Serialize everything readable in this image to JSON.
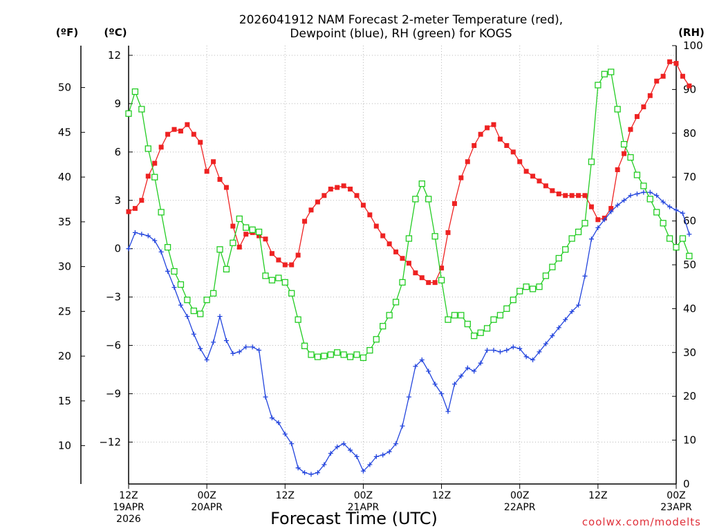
{
  "chart_data": {
    "type": "line",
    "title": [
      "2026041912 NAM Forecast 2-meter Temperature (red),",
      "Dewpoint (blue), RH (green) for KOGS"
    ],
    "xlabel": "Forecast Time (UTC)",
    "credit": "coolwx.com/modelts",
    "units": {
      "fahrenheit": "(ºF)",
      "celsius": "(ºC)",
      "rh": "(RH)"
    },
    "x_axis": {
      "range_hours": [
        0,
        84
      ],
      "ticks": [
        {
          "hour": 0,
          "lines": [
            "12Z",
            "19APR",
            "2026"
          ]
        },
        {
          "hour": 12,
          "lines": [
            "00Z",
            "20APR"
          ]
        },
        {
          "hour": 24,
          "lines": [
            "12Z"
          ]
        },
        {
          "hour": 36,
          "lines": [
            "00Z",
            "21APR"
          ]
        },
        {
          "hour": 48,
          "lines": [
            "12Z"
          ]
        },
        {
          "hour": 60,
          "lines": [
            "00Z",
            "22APR"
          ]
        },
        {
          "hour": 72,
          "lines": [
            "12Z"
          ]
        },
        {
          "hour": 84,
          "lines": [
            "00Z",
            "23APR"
          ]
        }
      ]
    },
    "y_axis_celsius": {
      "range": [
        -14.6,
        12.6
      ],
      "ticks": [
        12,
        9,
        6,
        3,
        0,
        -3,
        -6,
        -9,
        -12
      ],
      "labels": [
        "12",
        "9",
        "6",
        "3",
        "0",
        "−3",
        "−6",
        "−9",
        "−12"
      ]
    },
    "y_axis_fahrenheit": {
      "ticks": [
        50,
        45,
        40,
        35,
        30,
        25,
        20,
        15,
        10
      ],
      "labels": [
        "50",
        "45",
        "40",
        "35",
        "30",
        "25",
        "20",
        "15",
        "10"
      ]
    },
    "y_axis_rh": {
      "range": [
        0,
        100
      ],
      "ticks": [
        0,
        10,
        20,
        30,
        40,
        50,
        60,
        70,
        80,
        90,
        100
      ],
      "labels": [
        "0",
        "10",
        "20",
        "30",
        "40",
        "50",
        "60",
        "70",
        "80",
        "90",
        "100"
      ]
    },
    "grid": true,
    "series": [
      {
        "name": "Temperature",
        "unit": "C",
        "color": "#ee2222",
        "marker": "filled-square",
        "values": [
          2.3,
          2.5,
          3.0,
          4.5,
          5.3,
          6.3,
          7.1,
          7.4,
          7.3,
          7.7,
          7.1,
          6.6,
          4.8,
          5.4,
          4.3,
          3.8,
          1.4,
          0.1,
          0.9,
          1.0,
          0.8,
          0.6,
          -0.3,
          -0.7,
          -1.0,
          -1.0,
          -0.4,
          1.7,
          2.4,
          2.9,
          3.3,
          3.7,
          3.8,
          3.9,
          3.7,
          3.3,
          2.7,
          2.1,
          1.4,
          0.8,
          0.3,
          -0.2,
          -0.6,
          -0.9,
          -1.5,
          -1.8,
          -2.1,
          -2.1,
          -1.2,
          1.0,
          2.8,
          4.4,
          5.4,
          6.4,
          7.1,
          7.5,
          7.7,
          6.8,
          6.4,
          6.0,
          5.4,
          4.8,
          4.5,
          4.2,
          3.9,
          3.6,
          3.4,
          3.3,
          3.3,
          3.3,
          3.3,
          2.6,
          1.8,
          1.9,
          2.5,
          4.9,
          5.9,
          7.4,
          8.2,
          8.8,
          9.5,
          10.4,
          10.7,
          11.6,
          11.5,
          10.7,
          10.1
        ]
      },
      {
        "name": "Dewpoint",
        "unit": "C",
        "color": "#2244dd",
        "marker": "plus",
        "values": [
          0.0,
          1.0,
          0.9,
          0.8,
          0.5,
          -0.2,
          -1.4,
          -2.4,
          -3.5,
          -4.2,
          -5.3,
          -6.2,
          -6.9,
          -5.8,
          -4.2,
          -5.7,
          -6.5,
          -6.4,
          -6.1,
          -6.1,
          -6.3,
          -9.2,
          -10.5,
          -10.8,
          -11.5,
          -12.1,
          -13.6,
          -13.9,
          -14.0,
          -13.9,
          -13.4,
          -12.7,
          -12.3,
          -12.1,
          -12.5,
          -12.9,
          -13.8,
          -13.4,
          -12.9,
          -12.8,
          -12.6,
          -12.1,
          -11.0,
          -9.2,
          -7.3,
          -6.9,
          -7.6,
          -8.4,
          -9.0,
          -10.1,
          -8.4,
          -7.9,
          -7.4,
          -7.6,
          -7.1,
          -6.3,
          -6.3,
          -6.4,
          -6.3,
          -6.1,
          -6.2,
          -6.7,
          -6.9,
          -6.4,
          -5.9,
          -5.4,
          -4.9,
          -4.4,
          -3.9,
          -3.5,
          -1.7,
          0.6,
          1.3,
          1.8,
          2.3,
          2.7,
          3.0,
          3.3,
          3.4,
          3.5,
          3.5,
          3.3,
          2.9,
          2.6,
          2.4,
          2.2,
          0.9
        ]
      },
      {
        "name": "RH",
        "unit": "%",
        "color": "#22cc22",
        "marker": "open-square",
        "values": [
          84.5,
          89.5,
          85.5,
          76.5,
          70,
          62,
          54,
          48.5,
          45.5,
          42,
          39.5,
          38.8,
          42,
          43.5,
          53.5,
          49,
          55,
          60.5,
          58.5,
          58,
          57.5,
          47.5,
          46.5,
          47,
          46,
          43.5,
          37.5,
          31.5,
          29.5,
          29,
          29.2,
          29.5,
          30,
          29.5,
          29,
          29.5,
          28.8,
          30.5,
          33,
          36,
          38.5,
          41.5,
          46,
          56,
          65,
          68.5,
          65,
          56.5,
          46.5,
          37.5,
          38.5,
          38.5,
          36.5,
          33.8,
          34.5,
          35.5,
          37.5,
          38.5,
          40,
          42,
          44,
          45,
          44.5,
          45,
          47.5,
          49.5,
          51.5,
          53.5,
          56,
          57.5,
          59.5,
          73.5,
          91,
          93.5,
          94,
          85.5,
          77.5,
          74.5,
          70.5,
          68,
          65,
          62,
          59.5,
          56,
          54,
          56,
          52
        ]
      }
    ]
  }
}
